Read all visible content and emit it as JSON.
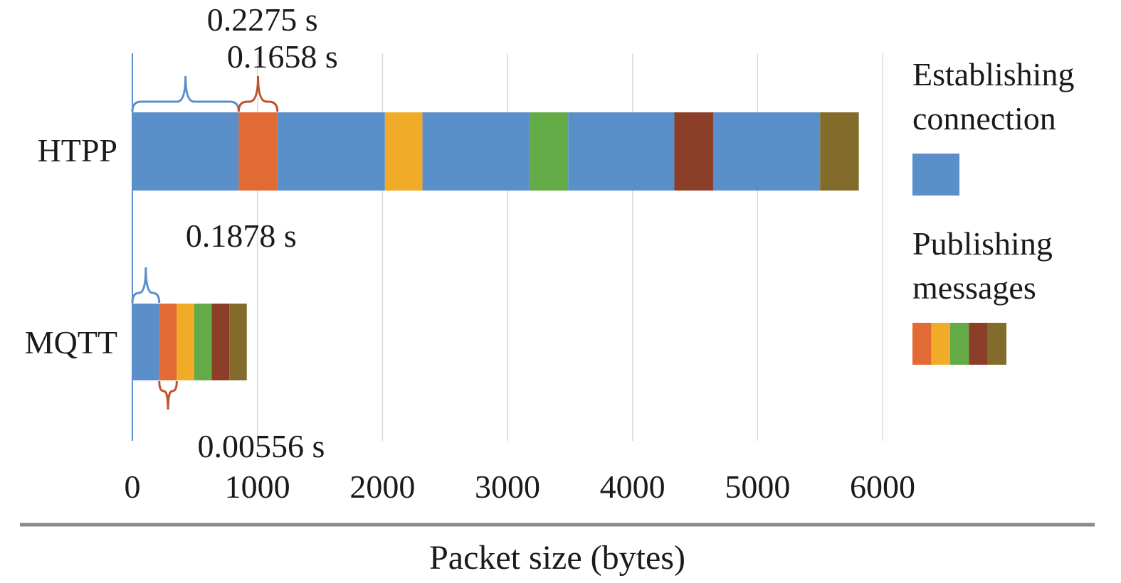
{
  "chart_data": {
    "type": "bar",
    "orientation": "horizontal",
    "stacked": true,
    "title": "",
    "xlabel": "Packet size (bytes)",
    "ylabel": "",
    "xlim": [
      0,
      6000
    ],
    "xticks": [
      0,
      1000,
      2000,
      3000,
      4000,
      5000,
      6000
    ],
    "grid": true,
    "categories": [
      "HTPP",
      "MQTT"
    ],
    "segments": [
      {
        "category": "HTPP",
        "parts": [
          {
            "kind": "establishing",
            "value": 850
          },
          {
            "kind": "publishing",
            "index": 0,
            "value": 310
          },
          {
            "kind": "establishing",
            "value": 860
          },
          {
            "kind": "publishing",
            "index": 1,
            "value": 300
          },
          {
            "kind": "establishing",
            "value": 860
          },
          {
            "kind": "publishing",
            "index": 2,
            "value": 305
          },
          {
            "kind": "establishing",
            "value": 850
          },
          {
            "kind": "publishing",
            "index": 3,
            "value": 310
          },
          {
            "kind": "establishing",
            "value": 855
          },
          {
            "kind": "publishing",
            "index": 4,
            "value": 310
          }
        ]
      },
      {
        "category": "MQTT",
        "parts": [
          {
            "kind": "establishing",
            "value": 215
          },
          {
            "kind": "publishing",
            "index": 0,
            "value": 140
          },
          {
            "kind": "publishing",
            "index": 1,
            "value": 140
          },
          {
            "kind": "publishing",
            "index": 2,
            "value": 140
          },
          {
            "kind": "publishing",
            "index": 3,
            "value": 140
          },
          {
            "kind": "publishing",
            "index": 4,
            "value": 140
          }
        ]
      }
    ],
    "annotations": [
      {
        "category": "HTPP",
        "text": "0.2275 s",
        "from": 0,
        "to": 850,
        "side": "above",
        "color": "#5b8fc9",
        "label_x": 1040
      },
      {
        "category": "HTPP",
        "text": "0.1658 s",
        "from": 850,
        "to": 1160,
        "side": "above",
        "color": "#c0522a",
        "label_x": 1200
      },
      {
        "category": "MQTT",
        "text": "0.1878 s",
        "from": 0,
        "to": 215,
        "side": "above",
        "color": "#5b8fc9",
        "label_x": 870
      },
      {
        "category": "MQTT",
        "text": "0.00556 s",
        "from": 215,
        "to": 355,
        "side": "below",
        "color": "#c0522a",
        "label_x": 1030
      }
    ],
    "legend": {
      "placement": "right",
      "entries": [
        {
          "label_lines": [
            "Establishing",
            "connection"
          ],
          "colors": [
            "#5b8fc9"
          ]
        },
        {
          "label_lines": [
            "Publishing",
            "messages"
          ],
          "colors": [
            "#e26a35",
            "#f0ac28",
            "#62ab47",
            "#8c3f28",
            "#836c2b"
          ]
        }
      ]
    },
    "colors": {
      "establishing": "#5b8fc9",
      "publishing": [
        "#e26a35",
        "#f0ac28",
        "#62ab47",
        "#8c3f28",
        "#836c2b"
      ]
    }
  }
}
